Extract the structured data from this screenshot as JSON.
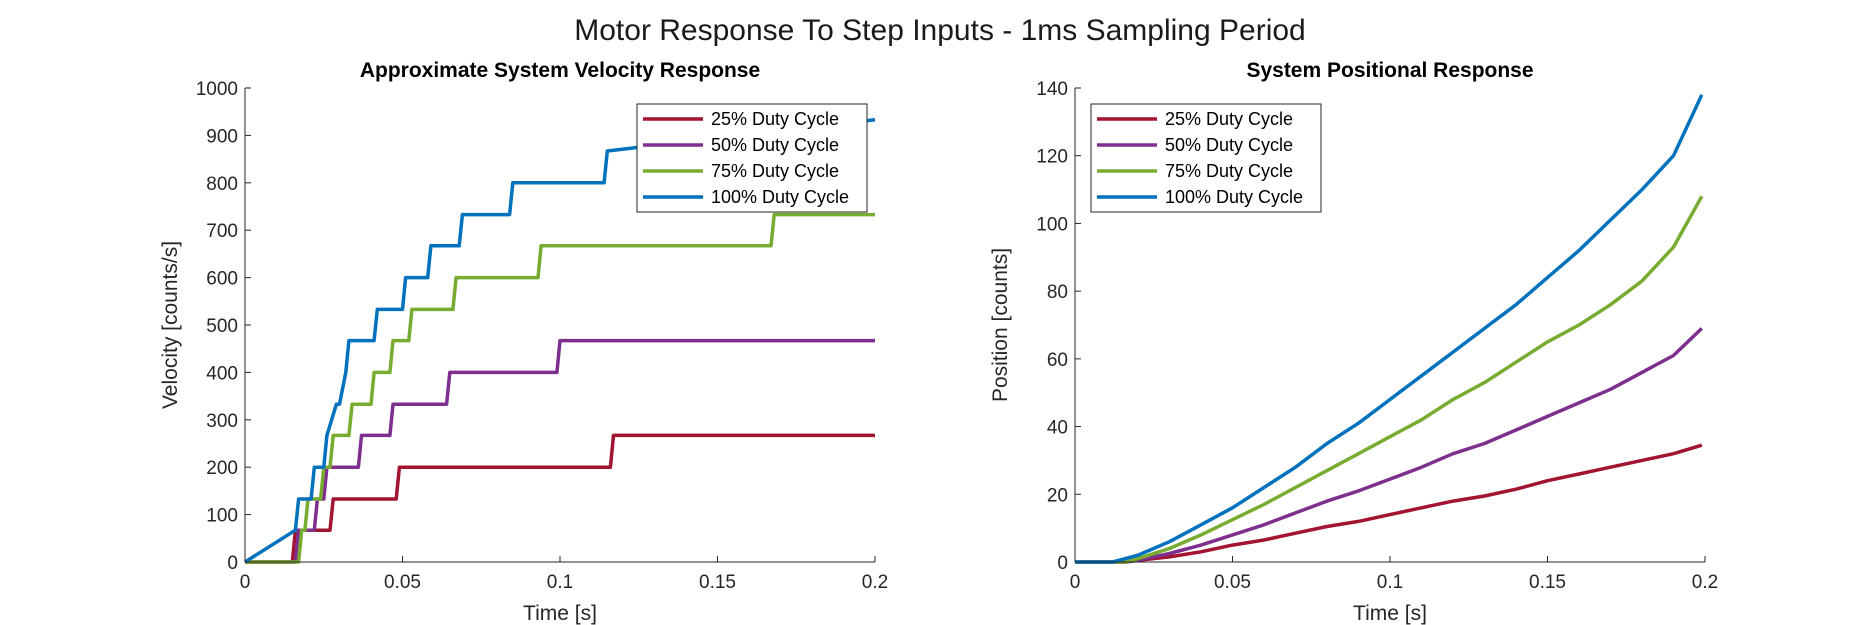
{
  "figure_title": "Motor Response To Step Inputs - 1ms Sampling Period",
  "colors": {
    "25% Duty Cycle": "#A2142F",
    "50% Duty Cycle": "#7E2F8E",
    "75% Duty Cycle": "#77AC30",
    "100% Duty Cycle": "#0072BD"
  },
  "chart_data": [
    {
      "type": "line",
      "title": "Approximate System Velocity Response",
      "xlabel": "Time [s]",
      "ylabel": "Velocity [counts/s]",
      "xlim": [
        0,
        0.2
      ],
      "ylim": [
        0,
        1000
      ],
      "xticks": [
        0,
        0.05,
        0.1,
        0.15,
        0.2
      ],
      "xticklabels": [
        "0",
        "0.05",
        "0.1",
        "0.15",
        "0.2"
      ],
      "yticks": [
        0,
        100,
        200,
        300,
        400,
        500,
        600,
        700,
        800,
        900,
        1000
      ],
      "yticklabels": [
        "0",
        "100",
        "200",
        "300",
        "400",
        "500",
        "600",
        "700",
        "800",
        "900",
        "1000"
      ],
      "legend_position": "top-right",
      "series": [
        {
          "name": "25% Duty Cycle",
          "x": [
            0,
            0.015,
            0.016,
            0.017,
            0.027,
            0.028,
            0.048,
            0.049,
            0.116,
            0.117,
            0.2
          ],
          "y": [
            0,
            0,
            67,
            67,
            67,
            133,
            133,
            200,
            200,
            267,
            267
          ]
        },
        {
          "name": "50% Duty Cycle",
          "x": [
            0,
            0.016,
            0.017,
            0.022,
            0.023,
            0.025,
            0.026,
            0.03,
            0.031,
            0.036,
            0.037,
            0.046,
            0.047,
            0.064,
            0.065,
            0.099,
            0.1,
            0.2
          ],
          "y": [
            0,
            0,
            67,
            67,
            133,
            133,
            200,
            200,
            200,
            200,
            267,
            267,
            333,
            333,
            400,
            400,
            467,
            467
          ]
        },
        {
          "name": "75% Duty Cycle",
          "x": [
            0,
            0.017,
            0.018,
            0.019,
            0.02,
            0.024,
            0.025,
            0.027,
            0.028,
            0.033,
            0.034,
            0.04,
            0.041,
            0.046,
            0.047,
            0.052,
            0.053,
            0.066,
            0.067,
            0.093,
            0.094,
            0.167,
            0.168,
            0.2
          ],
          "y": [
            0,
            0,
            67,
            67,
            133,
            133,
            200,
            200,
            267,
            267,
            333,
            333,
            400,
            400,
            467,
            467,
            533,
            533,
            600,
            600,
            667,
            667,
            733,
            733
          ]
        },
        {
          "name": "100% Duty Cycle",
          "x": [
            0,
            0.016,
            0.017,
            0.021,
            0.022,
            0.025,
            0.026,
            0.029,
            0.03,
            0.032,
            0.033,
            0.041,
            0.042,
            0.05,
            0.051,
            0.058,
            0.059,
            0.068,
            0.069,
            0.084,
            0.085,
            0.114,
            0.115,
            0.2
          ],
          "y": [
            0,
            67,
            133,
            133,
            200,
            200,
            267,
            333,
            333,
            400,
            467,
            467,
            533,
            533,
            600,
            600,
            667,
            667,
            733,
            733,
            800,
            800,
            867,
            933
          ]
        }
      ]
    },
    {
      "type": "line",
      "title": "System Positional Response",
      "xlabel": "Time [s]",
      "ylabel": "Position [counts]",
      "xlim": [
        0,
        0.2
      ],
      "ylim": [
        0,
        140
      ],
      "xticks": [
        0,
        0.05,
        0.1,
        0.15,
        0.2
      ],
      "xticklabels": [
        "0",
        "0.05",
        "0.1",
        "0.15",
        "0.2"
      ],
      "yticks": [
        0,
        20,
        40,
        60,
        80,
        100,
        120,
        140
      ],
      "yticklabels": [
        "0",
        "20",
        "40",
        "60",
        "80",
        "100",
        "120",
        "140"
      ],
      "legend_position": "top-left",
      "series": [
        {
          "name": "25% Duty Cycle",
          "x": [
            0,
            0.016,
            0.02,
            0.03,
            0.04,
            0.05,
            0.06,
            0.07,
            0.08,
            0.09,
            0.1,
            0.11,
            0.12,
            0.13,
            0.14,
            0.15,
            0.16,
            0.17,
            0.18,
            0.19,
            0.199
          ],
          "y": [
            0,
            0,
            0.5,
            1.5,
            3,
            5,
            6.5,
            8.5,
            10.5,
            12,
            14,
            16,
            18,
            19.5,
            21.5,
            24,
            26,
            28,
            30,
            32,
            34.5
          ]
        },
        {
          "name": "50% Duty Cycle",
          "x": [
            0,
            0.016,
            0.02,
            0.03,
            0.04,
            0.05,
            0.06,
            0.07,
            0.08,
            0.09,
            0.1,
            0.11,
            0.12,
            0.13,
            0.14,
            0.15,
            0.16,
            0.17,
            0.18,
            0.19,
            0.199
          ],
          "y": [
            0,
            0,
            0.5,
            2.5,
            5,
            8,
            11,
            14.5,
            18,
            21,
            24.5,
            28,
            32,
            35,
            39,
            43,
            47,
            51,
            56,
            61,
            69
          ]
        },
        {
          "name": "75% Duty Cycle",
          "x": [
            0,
            0.016,
            0.02,
            0.03,
            0.04,
            0.05,
            0.06,
            0.07,
            0.08,
            0.09,
            0.1,
            0.11,
            0.12,
            0.13,
            0.14,
            0.15,
            0.16,
            0.17,
            0.18,
            0.19,
            0.199
          ],
          "y": [
            0,
            0,
            1,
            4,
            8,
            12.5,
            17,
            22,
            27,
            32,
            37,
            42,
            48,
            53,
            59,
            65,
            70,
            76,
            83,
            93,
            108
          ]
        },
        {
          "name": "100% Duty Cycle",
          "x": [
            0,
            0.012,
            0.02,
            0.03,
            0.04,
            0.05,
            0.06,
            0.07,
            0.08,
            0.09,
            0.1,
            0.11,
            0.12,
            0.13,
            0.14,
            0.15,
            0.16,
            0.17,
            0.18,
            0.19,
            0.199
          ],
          "y": [
            0,
            0,
            2,
            6,
            11,
            16,
            22,
            28,
            35,
            41,
            48,
            55,
            62,
            69,
            76,
            84,
            92,
            101,
            110,
            120,
            138
          ]
        }
      ]
    }
  ]
}
